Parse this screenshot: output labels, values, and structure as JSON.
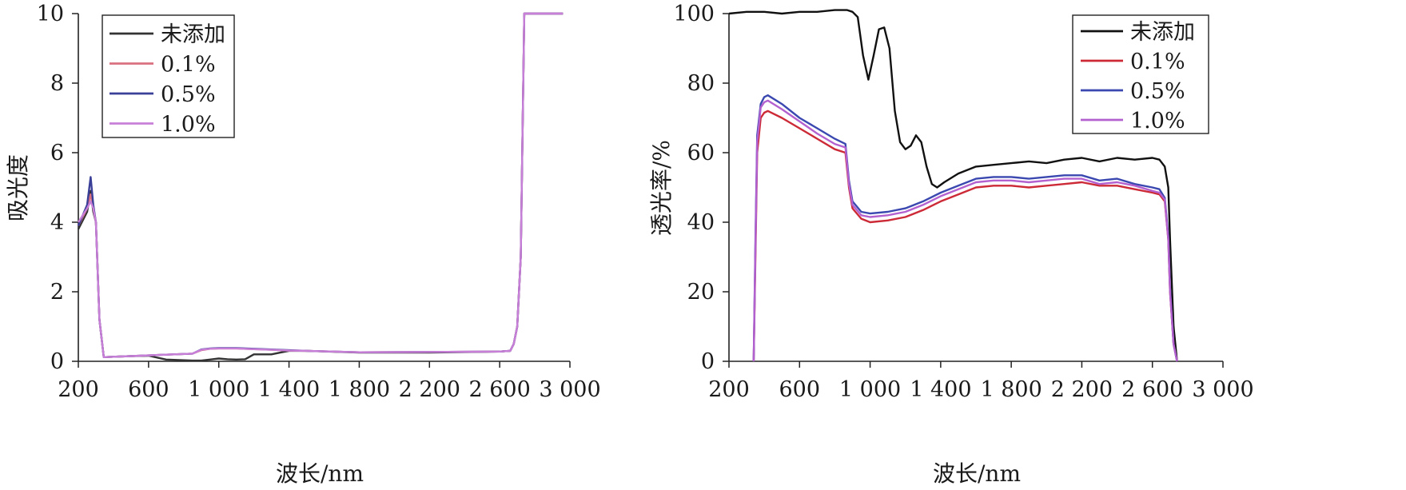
{
  "chart_data": [
    {
      "type": "line",
      "title": "",
      "xlabel": "波长/nm",
      "ylabel": "吸光度",
      "xlim": [
        200,
        3000
      ],
      "ylim": [
        0,
        10
      ],
      "xticks": [
        200,
        600,
        1000,
        1400,
        1800,
        2200,
        2600,
        3000
      ],
      "xtick_labels": [
        "200",
        "600",
        "1 000",
        "1 400",
        "1 800",
        "2 200",
        "2 600",
        "3 000"
      ],
      "yticks": [
        0,
        2,
        4,
        6,
        8,
        10
      ],
      "ytick_labels": [
        "0",
        "2",
        "4",
        "6",
        "8",
        "10"
      ],
      "grid": false,
      "legend": "top-left",
      "series": [
        {
          "name": "未添加",
          "color": "#333333",
          "x": [
            200,
            250,
            270,
            285,
            300,
            320,
            345,
            400,
            500,
            600,
            700,
            850,
            900,
            950,
            1000,
            1050,
            1100,
            1150,
            1200,
            1250,
            1300,
            1350,
            1400,
            1500,
            1800,
            2200,
            2600,
            2660,
            2680,
            2700,
            2720,
            2740,
            2780,
            2900,
            2960
          ],
          "y": [
            3.8,
            4.3,
            4.9,
            4.3,
            4.0,
            1.2,
            0.12,
            0.13,
            0.15,
            0.16,
            0.05,
            0.02,
            0.02,
            0.05,
            0.08,
            0.06,
            0.05,
            0.06,
            0.2,
            0.2,
            0.2,
            0.25,
            0.3,
            0.3,
            0.25,
            0.25,
            0.28,
            0.3,
            0.5,
            1.0,
            3.0,
            10.0,
            10.0,
            10.0,
            10.0
          ]
        },
        {
          "name": "0.1%",
          "color": "#d9707f",
          "x": [
            200,
            250,
            270,
            285,
            300,
            320,
            345,
            400,
            500,
            600,
            700,
            850,
            900,
            950,
            1000,
            1100,
            1200,
            1300,
            1400,
            1500,
            1800,
            2200,
            2600,
            2660,
            2680,
            2700,
            2720,
            2740,
            2780,
            2900,
            2960
          ],
          "y": [
            3.9,
            4.4,
            4.8,
            4.4,
            4.0,
            1.2,
            0.12,
            0.13,
            0.15,
            0.17,
            0.19,
            0.22,
            0.32,
            0.36,
            0.37,
            0.37,
            0.35,
            0.33,
            0.31,
            0.3,
            0.26,
            0.27,
            0.28,
            0.3,
            0.5,
            1.0,
            3.0,
            10.0,
            10.0,
            10.0,
            10.0
          ]
        },
        {
          "name": "0.5%",
          "color": "#3a3f98",
          "x": [
            200,
            250,
            270,
            285,
            300,
            320,
            345,
            400,
            500,
            600,
            700,
            850,
            900,
            950,
            1000,
            1100,
            1200,
            1300,
            1400,
            1500,
            1800,
            2200,
            2600,
            2660,
            2680,
            2700,
            2720,
            2740,
            2780,
            2900,
            2960
          ],
          "y": [
            3.9,
            4.5,
            5.3,
            4.5,
            4.0,
            1.2,
            0.12,
            0.13,
            0.15,
            0.17,
            0.19,
            0.22,
            0.34,
            0.37,
            0.38,
            0.38,
            0.36,
            0.34,
            0.32,
            0.3,
            0.26,
            0.27,
            0.28,
            0.3,
            0.5,
            1.0,
            3.0,
            10.0,
            10.0,
            10.0,
            10.0
          ]
        },
        {
          "name": "1.0%",
          "color": "#c77fd8",
          "x": [
            200,
            250,
            270,
            285,
            300,
            320,
            345,
            400,
            500,
            600,
            700,
            850,
            900,
            950,
            1000,
            1100,
            1200,
            1300,
            1400,
            1500,
            1800,
            2200,
            2600,
            2660,
            2680,
            2700,
            2720,
            2740,
            2780,
            2900,
            2960
          ],
          "y": [
            4.0,
            4.4,
            4.6,
            4.4,
            4.0,
            1.2,
            0.12,
            0.13,
            0.15,
            0.17,
            0.19,
            0.22,
            0.33,
            0.36,
            0.37,
            0.37,
            0.35,
            0.33,
            0.31,
            0.3,
            0.26,
            0.27,
            0.28,
            0.3,
            0.5,
            1.0,
            3.0,
            10.0,
            10.0,
            10.0,
            10.0
          ]
        }
      ]
    },
    {
      "type": "line",
      "title": "",
      "xlabel": "波长/nm",
      "ylabel": "透光率/%",
      "xlim": [
        200,
        3000
      ],
      "ylim": [
        0,
        100
      ],
      "xticks": [
        200,
        600,
        1000,
        1400,
        1800,
        2200,
        2600,
        3000
      ],
      "xtick_labels": [
        "200",
        "600",
        "1 000",
        "1 400",
        "1 800",
        "2 200",
        "2 600",
        "3 000"
      ],
      "yticks": [
        0,
        20,
        40,
        60,
        80,
        100
      ],
      "ytick_labels": [
        "0",
        "20",
        "40",
        "60",
        "80",
        "100"
      ],
      "grid": false,
      "legend": "top-right",
      "series": [
        {
          "name": "未添加",
          "color": "#111111",
          "x": [
            200,
            300,
            400,
            500,
            600,
            700,
            800,
            870,
            900,
            930,
            960,
            990,
            1020,
            1050,
            1080,
            1110,
            1140,
            1170,
            1200,
            1230,
            1260,
            1290,
            1320,
            1350,
            1380,
            1420,
            1500,
            1600,
            1700,
            1800,
            1900,
            2000,
            2100,
            2200,
            2300,
            2400,
            2500,
            2600,
            2640,
            2670,
            2690,
            2700,
            2720,
            2740
          ],
          "y": [
            100,
            100.5,
            100.5,
            100,
            100.5,
            100.5,
            101,
            101,
            100.5,
            99,
            88,
            81,
            88,
            95.5,
            96,
            90,
            72,
            63,
            61,
            62,
            65,
            63,
            56,
            51,
            50,
            51.5,
            54,
            56,
            56.5,
            57,
            57.5,
            57,
            58,
            58.5,
            57.5,
            58.5,
            58,
            58.5,
            58,
            56,
            50,
            35,
            10,
            0
          ]
        },
        {
          "name": "0.1%",
          "color": "#cc2a36",
          "x": [
            340,
            350,
            360,
            380,
            400,
            420,
            500,
            600,
            700,
            800,
            860,
            880,
            900,
            950,
            1000,
            1100,
            1200,
            1300,
            1400,
            1500,
            1600,
            1700,
            1800,
            1900,
            2000,
            2100,
            2200,
            2300,
            2400,
            2500,
            2600,
            2640,
            2670,
            2690,
            2700,
            2720,
            2740
          ],
          "y": [
            0,
            30,
            60,
            70,
            71.5,
            72,
            70,
            67,
            64,
            61,
            60,
            50,
            44,
            41,
            40,
            40.5,
            41.5,
            43.5,
            46,
            48,
            50,
            50.5,
            50.5,
            50,
            50.5,
            51,
            51.5,
            50.5,
            50.5,
            49.5,
            48.5,
            48,
            46,
            35,
            20,
            5,
            0
          ]
        },
        {
          "name": "0.5%",
          "color": "#3a48b0",
          "x": [
            340,
            350,
            360,
            380,
            400,
            420,
            500,
            600,
            700,
            800,
            860,
            880,
            900,
            950,
            1000,
            1100,
            1200,
            1300,
            1400,
            1500,
            1600,
            1700,
            1800,
            1900,
            2000,
            2100,
            2200,
            2300,
            2400,
            2500,
            2600,
            2640,
            2670,
            2690,
            2700,
            2720,
            2740
          ],
          "y": [
            0,
            35,
            65,
            74,
            76,
            76.5,
            74,
            70,
            67,
            64,
            62.5,
            52,
            46,
            43,
            42.5,
            43,
            44,
            46,
            48.5,
            50.5,
            52.5,
            53,
            53,
            52.5,
            53,
            53.5,
            53.5,
            52,
            52.5,
            51,
            50,
            49.5,
            47,
            36,
            21,
            5,
            0
          ]
        },
        {
          "name": "1.0%",
          "color": "#b461d0",
          "x": [
            340,
            350,
            360,
            380,
            400,
            420,
            500,
            600,
            700,
            800,
            860,
            880,
            900,
            950,
            1000,
            1100,
            1200,
            1300,
            1400,
            1500,
            1600,
            1700,
            1800,
            1900,
            2000,
            2100,
            2200,
            2300,
            2400,
            2500,
            2600,
            2640,
            2670,
            2690,
            2700,
            2720,
            2740
          ],
          "y": [
            0,
            33,
            63,
            73,
            74.5,
            75,
            72.5,
            69,
            65.5,
            62.5,
            61.5,
            51,
            45,
            42,
            41.5,
            42,
            43,
            45,
            47.5,
            49.5,
            51.5,
            52,
            52,
            51.5,
            52,
            52.5,
            52.5,
            51,
            51.5,
            50.5,
            49,
            48.5,
            46.5,
            35,
            20,
            5,
            0
          ]
        }
      ]
    }
  ]
}
